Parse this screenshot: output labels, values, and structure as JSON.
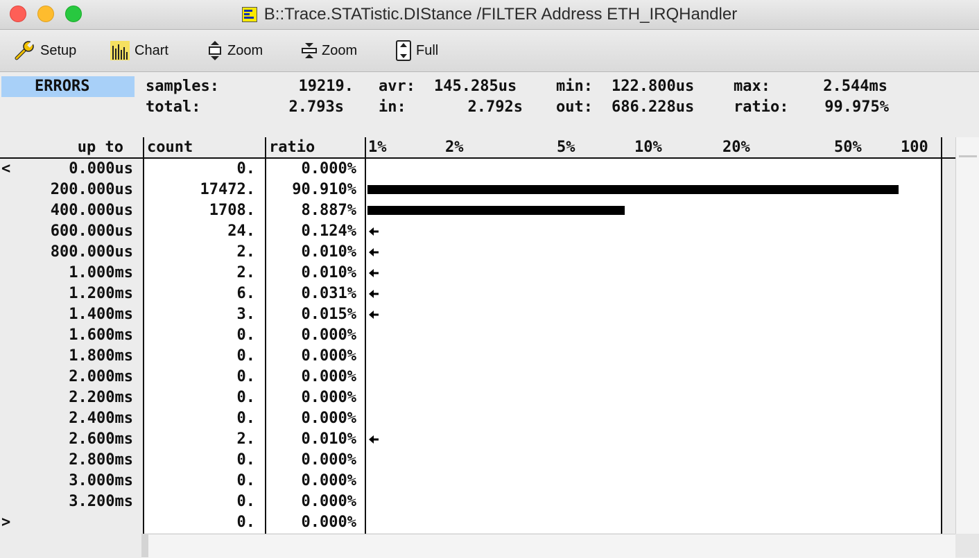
{
  "window": {
    "title": "B::Trace.STATistic.DIStance /FILTER Address ETH_IRQHandler"
  },
  "toolbar": {
    "buttons": [
      {
        "label": "Setup",
        "icon": "wrench-icon"
      },
      {
        "label": "Chart",
        "icon": "chart-icon"
      },
      {
        "label": "Zoom",
        "icon": "zoom-in-icon"
      },
      {
        "label": "Zoom",
        "icon": "zoom-out-icon"
      },
      {
        "label": "Full",
        "icon": "full-icon"
      }
    ]
  },
  "stats": {
    "badge": "ERRORS",
    "samples_label": "samples:",
    "samples_value": "19219.",
    "avr_label": "avr:",
    "avr_value": "145.285us",
    "min_label": "min:",
    "min_value": "122.800us",
    "max_label": "max:",
    "max_value": "2.544ms",
    "total_label": "total:",
    "total_value": "2.793s",
    "in_label": "in:",
    "in_value": "2.792s",
    "out_label": "out:",
    "out_value": "686.228us",
    "ratio_label": "ratio:",
    "ratio_value": "99.975%"
  },
  "table": {
    "headers": {
      "upto": "up to",
      "count": "count",
      "ratio": "ratio"
    },
    "scale_labels": [
      "1%",
      "2%",
      "5%",
      "10%",
      "20%",
      "50%",
      "100"
    ],
    "rows": [
      {
        "mark": "<",
        "upto": "0.000us",
        "count": "0.",
        "ratio": "0.000%",
        "pct": 0.0
      },
      {
        "mark": "",
        "upto": "200.000us",
        "count": "17472.",
        "ratio": "90.910%",
        "pct": 90.91
      },
      {
        "mark": "",
        "upto": "400.000us",
        "count": "1708.",
        "ratio": "8.887%",
        "pct": 8.887
      },
      {
        "mark": "",
        "upto": "600.000us",
        "count": "24.",
        "ratio": "0.124%",
        "pct": 0.124
      },
      {
        "mark": "",
        "upto": "800.000us",
        "count": "2.",
        "ratio": "0.010%",
        "pct": 0.01
      },
      {
        "mark": "",
        "upto": "1.000ms",
        "count": "2.",
        "ratio": "0.010%",
        "pct": 0.01
      },
      {
        "mark": "",
        "upto": "1.200ms",
        "count": "6.",
        "ratio": "0.031%",
        "pct": 0.031
      },
      {
        "mark": "",
        "upto": "1.400ms",
        "count": "3.",
        "ratio": "0.015%",
        "pct": 0.015
      },
      {
        "mark": "",
        "upto": "1.600ms",
        "count": "0.",
        "ratio": "0.000%",
        "pct": 0.0
      },
      {
        "mark": "",
        "upto": "1.800ms",
        "count": "0.",
        "ratio": "0.000%",
        "pct": 0.0
      },
      {
        "mark": "",
        "upto": "2.000ms",
        "count": "0.",
        "ratio": "0.000%",
        "pct": 0.0
      },
      {
        "mark": "",
        "upto": "2.200ms",
        "count": "0.",
        "ratio": "0.000%",
        "pct": 0.0
      },
      {
        "mark": "",
        "upto": "2.400ms",
        "count": "0.",
        "ratio": "0.000%",
        "pct": 0.0
      },
      {
        "mark": "",
        "upto": "2.600ms",
        "count": "2.",
        "ratio": "0.010%",
        "pct": 0.01
      },
      {
        "mark": "",
        "upto": "2.800ms",
        "count": "0.",
        "ratio": "0.000%",
        "pct": 0.0
      },
      {
        "mark": "",
        "upto": "3.000ms",
        "count": "0.",
        "ratio": "0.000%",
        "pct": 0.0
      },
      {
        "mark": "",
        "upto": "3.200ms",
        "count": "0.",
        "ratio": "0.000%",
        "pct": 0.0
      },
      {
        "mark": ">",
        "upto": "",
        "count": "0.",
        "ratio": "0.000%",
        "pct": 0.0
      }
    ]
  },
  "colors": {
    "badge_bg": "#a8d0f8",
    "bar": "#000000"
  }
}
